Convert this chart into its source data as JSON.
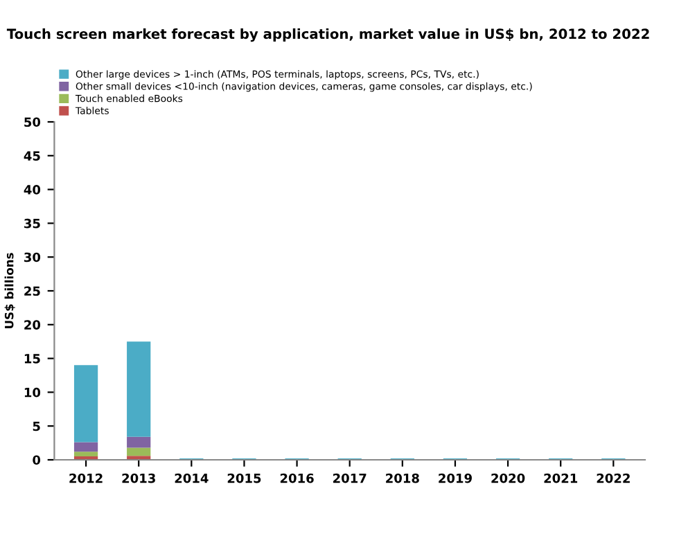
{
  "chart_data": {
    "type": "bar",
    "title": "Touch screen market forecast by application, market value in US$ bn, 2012 to 2022",
    "ylabel": "US$ billions",
    "categories": [
      "2012",
      "2013",
      "2014",
      "2015",
      "2016",
      "2017",
      "2018",
      "2019",
      "2020",
      "2021",
      "2022"
    ],
    "stacked": true,
    "series": [
      {
        "name": "Tablets",
        "color": "#c0504d",
        "values": [
          0.5,
          0.6,
          0,
          0,
          0,
          0,
          0,
          0,
          0,
          0,
          0
        ]
      },
      {
        "name": "Touch enabled eBooks",
        "color": "#9bbb59",
        "values": [
          0.7,
          1.2,
          0,
          0,
          0,
          0,
          0,
          0,
          0,
          0,
          0
        ]
      },
      {
        "name": "Other small devices <10-inch (navigation devices, cameras, game consoles, car displays, etc.)",
        "color": "#8064a2",
        "values": [
          1.4,
          1.6,
          0,
          0,
          0,
          0,
          0,
          0,
          0,
          0,
          0
        ]
      },
      {
        "name": "Other large devices > 1-inch (ATMs, POS terminals, laptops, screens, PCs, TVs, etc.)",
        "color": "#4bacc6",
        "values": [
          11.4,
          14.1,
          0.2,
          0.2,
          0.2,
          0.2,
          0.2,
          0.2,
          0.2,
          0.2,
          0.2
        ]
      }
    ],
    "ylim": [
      0,
      50
    ],
    "yticks": [
      0,
      5,
      10,
      15,
      20,
      25,
      30,
      35,
      40,
      45,
      50
    ],
    "grid": false,
    "legend": "top left"
  }
}
